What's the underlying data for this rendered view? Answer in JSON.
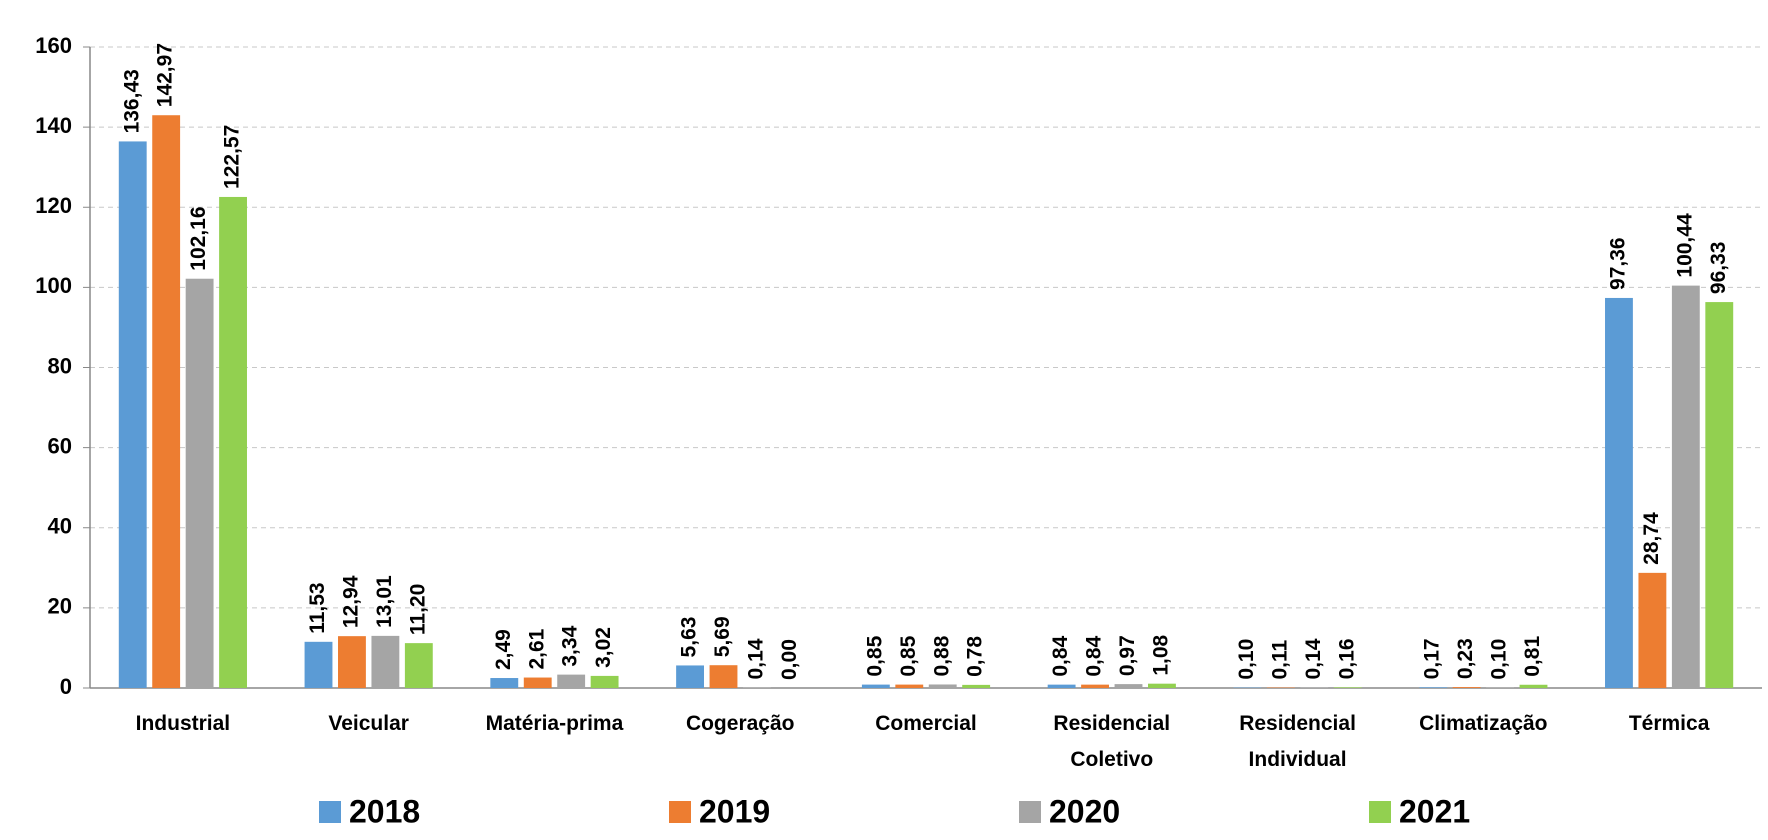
{
  "chart_data": {
    "type": "bar",
    "categories": [
      "Industrial",
      "Veicular",
      "Matéria-prima",
      "Cogeração",
      "Comercial",
      "Residencial Coletivo",
      "Residencial Individual",
      "Climatização",
      "Térmica"
    ],
    "series": [
      {
        "name": "2018",
        "color": "#5b9bd5",
        "values": [
          136.43,
          11.53,
          2.49,
          5.63,
          0.85,
          0.84,
          0.1,
          0.17,
          97.36
        ],
        "value_labels": [
          "136,43",
          "11,53",
          "2,49",
          "5,63",
          "0,85",
          "0,84",
          "0,10",
          "0,17",
          "97,36"
        ]
      },
      {
        "name": "2019",
        "color": "#ed7d31",
        "values": [
          142.97,
          12.94,
          2.61,
          5.69,
          0.85,
          0.84,
          0.11,
          0.23,
          28.74
        ],
        "value_labels": [
          "142,97",
          "12,94",
          "2,61",
          "5,69",
          "0,85",
          "0,84",
          "0,11",
          "0,23",
          "28,74"
        ]
      },
      {
        "name": "2020",
        "color": "#a5a5a5",
        "values": [
          102.16,
          13.01,
          3.34,
          0.14,
          0.88,
          0.97,
          0.14,
          0.1,
          100.44
        ],
        "value_labels": [
          "102,16",
          "13,01",
          "3,34",
          "0,14",
          "0,88",
          "0,97",
          "0,14",
          "0,10",
          "100,44"
        ]
      },
      {
        "name": "2021",
        "color": "#92d050",
        "values": [
          122.57,
          11.2,
          3.02,
          0.0,
          0.78,
          1.08,
          0.16,
          0.81,
          96.33
        ],
        "value_labels": [
          "122,57",
          "11,20",
          "3,02",
          "0,00",
          "0,78",
          "1,08",
          "0,16",
          "0,81",
          "96,33"
        ]
      }
    ],
    "ylim": [
      0,
      160
    ],
    "yticks": [
      0,
      20,
      40,
      60,
      80,
      100,
      120,
      140,
      160
    ],
    "grid": true,
    "legend": "bottom"
  }
}
